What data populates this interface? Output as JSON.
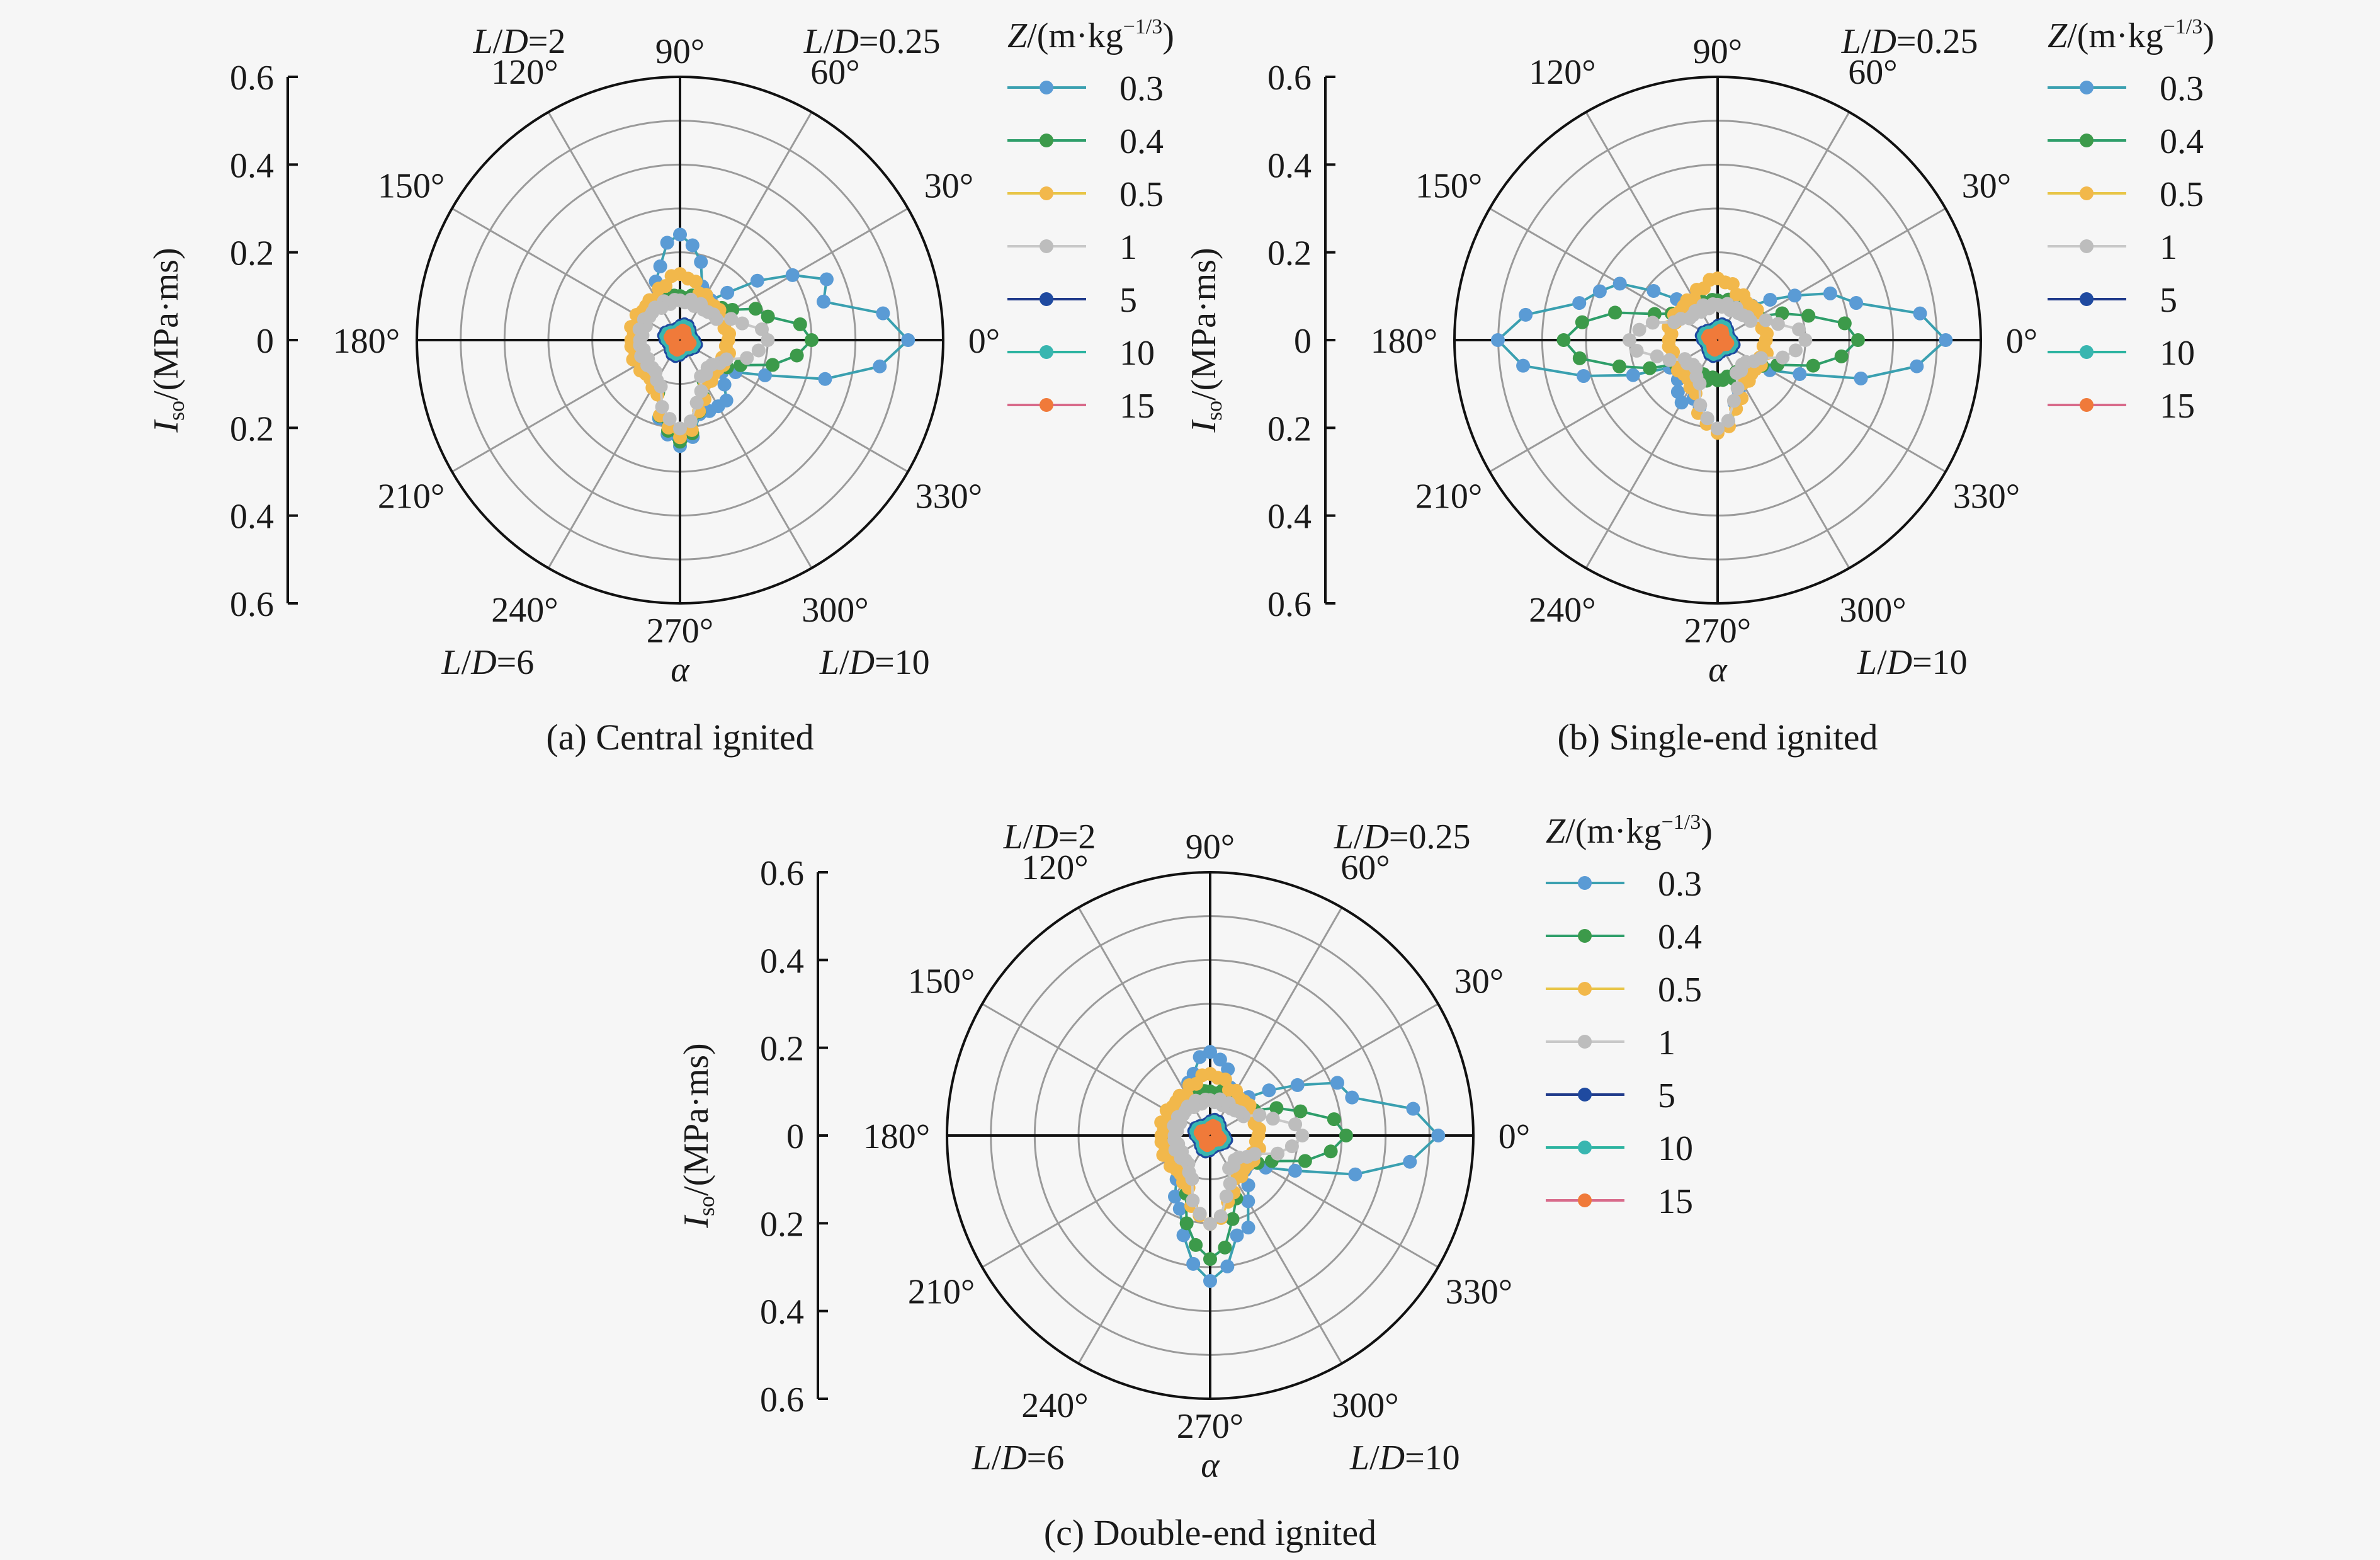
{
  "figure": {
    "background": "#f6f6f6",
    "ring_color": "#9a9a9a",
    "axis_color": "#111111"
  },
  "legend": {
    "title_var": "Z",
    "title_rest": "/(m·kg",
    "title_exp": "−1/3",
    "title_close": ")",
    "entries": [
      {
        "label": "0.3",
        "line": "#3aa0b0",
        "marker": "#5a9bd5"
      },
      {
        "label": "0.4",
        "line": "#2e9e6a",
        "marker": "#3c9a4a"
      },
      {
        "label": "0.5",
        "line": "#e8c547",
        "marker": "#f2b84b"
      },
      {
        "label": "1",
        "line": "#c8c8c8",
        "marker": "#bdbdbd"
      },
      {
        "label": "5",
        "line": "#1f3a8a",
        "marker": "#1f4aa0"
      },
      {
        "label": "10",
        "line": "#2bb3a0",
        "marker": "#38b6b0"
      },
      {
        "label": "15",
        "line": "#d86a8a",
        "marker": "#f07a3a"
      }
    ]
  },
  "chart_data": [
    {
      "type": "polar",
      "caption": "(a) Central ignited",
      "ylabel_var": "I",
      "ylabel_sub": "so",
      "ylabel_rest": "/(MPa·ms)",
      "y_ticks_top": [
        "0.6",
        "0.4",
        "0.2",
        "0"
      ],
      "y_ticks_bottom": [
        "0.2",
        "0.4",
        "0.6"
      ],
      "r_max": 0.6,
      "angle_labels": [
        "0°",
        "30°",
        "60°",
        "90°",
        "120°",
        "150°",
        "180°",
        "210°",
        "240°",
        "270°",
        "300°",
        "330°"
      ],
      "angle_var": "α",
      "quadrants": {
        "q1": "0.25",
        "q2": "2",
        "q3": "6",
        "q4": "10"
      },
      "series_profiles": [
        {
          "name": "0.3",
          "peaks": [
            {
              "a": 0,
              "v": 0.52
            },
            {
              "a": 20,
              "v": 0.36
            },
            {
              "a": 90,
              "v": 0.24
            },
            {
              "a": 270,
              "v": 0.24
            },
            {
              "a": 300,
              "v": 0.18
            }
          ],
          "base": 0.1
        },
        {
          "name": "0.4",
          "peaks": [
            {
              "a": 0,
              "v": 0.3
            },
            {
              "a": 10,
              "v": 0.22
            },
            {
              "a": 270,
              "v": 0.23
            }
          ],
          "base": 0.1
        },
        {
          "name": "0.5",
          "peaks": [
            {
              "a": 90,
              "v": 0.15
            },
            {
              "a": 270,
              "v": 0.22
            }
          ],
          "base": 0.11
        },
        {
          "name": "1",
          "peaks": [
            {
              "a": 0,
              "v": 0.2
            },
            {
              "a": 270,
              "v": 0.2
            }
          ],
          "base": 0.09
        },
        {
          "name": "5",
          "peaks": [],
          "base": 0.035
        },
        {
          "name": "10",
          "peaks": [],
          "base": 0.03
        },
        {
          "name": "15",
          "peaks": [],
          "base": 0.02
        }
      ]
    },
    {
      "type": "polar",
      "caption": "(b) Single-end ignited",
      "ylabel_var": "I",
      "ylabel_sub": "so",
      "ylabel_rest": "/(MPa·ms)",
      "y_ticks_top": [
        "0.6",
        "0.4",
        "0.2",
        "0"
      ],
      "y_ticks_bottom": [
        "0.2",
        "0.4",
        "0.6"
      ],
      "r_max": 0.6,
      "angle_labels": [
        "0°",
        "30°",
        "60°",
        "90°",
        "120°",
        "150°",
        "180°",
        "210°",
        "240°",
        "270°",
        "300°",
        "330°"
      ],
      "angle_var": "α",
      "quadrants": {
        "q1": "0.25",
        "q2": "",
        "q3": "",
        "q4": "10"
      },
      "series_profiles": [
        {
          "name": "0.3",
          "peaks": [
            {
              "a": 0,
              "v": 0.52
            },
            {
              "a": 180,
              "v": 0.5
            },
            {
              "a": 15,
              "v": 0.3
            },
            {
              "a": 160,
              "v": 0.3
            },
            {
              "a": 270,
              "v": 0.2
            },
            {
              "a": 240,
              "v": 0.16
            }
          ],
          "base": 0.09
        },
        {
          "name": "0.4",
          "peaks": [
            {
              "a": 0,
              "v": 0.32
            },
            {
              "a": 180,
              "v": 0.35
            }
          ],
          "base": 0.09
        },
        {
          "name": "0.5",
          "peaks": [
            {
              "a": 90,
              "v": 0.14
            },
            {
              "a": 270,
              "v": 0.21
            }
          ],
          "base": 0.11
        },
        {
          "name": "1",
          "peaks": [
            {
              "a": 0,
              "v": 0.2
            },
            {
              "a": 180,
              "v": 0.2
            },
            {
              "a": 270,
              "v": 0.2
            }
          ],
          "base": 0.08
        },
        {
          "name": "5",
          "peaks": [],
          "base": 0.035
        },
        {
          "name": "10",
          "peaks": [],
          "base": 0.03
        },
        {
          "name": "15",
          "peaks": [],
          "base": 0.02
        }
      ]
    },
    {
      "type": "polar",
      "caption": "(c) Double-end ignited",
      "ylabel_var": "I",
      "ylabel_sub": "so",
      "ylabel_rest": "/(MPa·ms)",
      "y_ticks_top": [
        "0.6",
        "0.4",
        "0.2",
        "0"
      ],
      "y_ticks_bottom": [
        "0.2",
        "0.4",
        "0.6"
      ],
      "r_max": 0.6,
      "angle_labels": [
        "0°",
        "30°",
        "60°",
        "90°",
        "120°",
        "150°",
        "180°",
        "210°",
        "240°",
        "270°",
        "300°",
        "330°"
      ],
      "angle_var": "α",
      "quadrants": {
        "q1": "0.25",
        "q2": "2",
        "q3": "6",
        "q4": "10"
      },
      "series_profiles": [
        {
          "name": "0.3",
          "peaks": [
            {
              "a": 0,
              "v": 0.52
            },
            {
              "a": 15,
              "v": 0.34
            },
            {
              "a": 270,
              "v": 0.33
            },
            {
              "a": 285,
              "v": 0.24
            },
            {
              "a": 255,
              "v": 0.2
            },
            {
              "a": 90,
              "v": 0.19
            }
          ],
          "base": 0.1
        },
        {
          "name": "0.4",
          "peaks": [
            {
              "a": 0,
              "v": 0.31
            },
            {
              "a": 270,
              "v": 0.28
            }
          ],
          "base": 0.1
        },
        {
          "name": "0.5",
          "peaks": [
            {
              "a": 90,
              "v": 0.14
            },
            {
              "a": 270,
              "v": 0.2
            }
          ],
          "base": 0.11
        },
        {
          "name": "1",
          "peaks": [
            {
              "a": 0,
              "v": 0.21
            },
            {
              "a": 270,
              "v": 0.2
            }
          ],
          "base": 0.08
        },
        {
          "name": "5",
          "peaks": [],
          "base": 0.035
        },
        {
          "name": "10",
          "peaks": [],
          "base": 0.03
        },
        {
          "name": "15",
          "peaks": [],
          "base": 0.02
        }
      ]
    }
  ]
}
